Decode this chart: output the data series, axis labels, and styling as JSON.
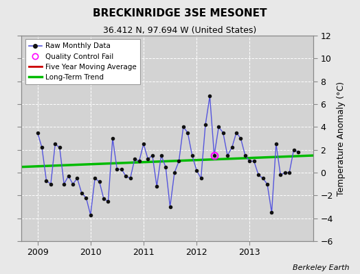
{
  "title": "BRECKINRIDGE 3SE MESONET",
  "subtitle": "36.412 N, 97.694 W (United States)",
  "ylabel": "Temperature Anomaly (°C)",
  "credit": "Berkeley Earth",
  "ylim": [
    -6,
    12
  ],
  "yticks": [
    -6,
    -4,
    -2,
    0,
    2,
    4,
    6,
    8,
    10,
    12
  ],
  "xlim": [
    2008.7,
    2014.2
  ],
  "bg_color": "#e8e8e8",
  "plot_bg_color": "#d3d3d3",
  "raw_color": "#5555dd",
  "raw_marker_color": "#111111",
  "trend_color": "#00bb00",
  "mavg_color": "#cc0000",
  "qc_fail_color": "#ff00ff",
  "raw_data_x": [
    2009.0,
    2009.083,
    2009.167,
    2009.25,
    2009.333,
    2009.417,
    2009.5,
    2009.583,
    2009.667,
    2009.75,
    2009.833,
    2009.917,
    2010.0,
    2010.083,
    2010.167,
    2010.25,
    2010.333,
    2010.417,
    2010.5,
    2010.583,
    2010.667,
    2010.75,
    2010.833,
    2010.917,
    2011.0,
    2011.083,
    2011.167,
    2011.25,
    2011.333,
    2011.417,
    2011.5,
    2011.583,
    2011.667,
    2011.75,
    2011.833,
    2011.917,
    2012.0,
    2012.083,
    2012.167,
    2012.25,
    2012.333,
    2012.417,
    2012.5,
    2012.583,
    2012.667,
    2012.75,
    2012.833,
    2012.917,
    2013.0,
    2013.083,
    2013.167,
    2013.25,
    2013.333,
    2013.417,
    2013.5,
    2013.583,
    2013.667,
    2013.75,
    2013.833,
    2013.917
  ],
  "raw_data_y": [
    3.5,
    2.2,
    -0.7,
    -1.0,
    2.5,
    2.2,
    -1.0,
    -0.3,
    -1.0,
    -0.5,
    -1.8,
    -2.2,
    -3.7,
    -0.5,
    -0.8,
    -2.3,
    -2.5,
    3.0,
    0.3,
    0.3,
    -0.3,
    -0.5,
    1.2,
    1.0,
    2.5,
    1.2,
    1.5,
    -1.2,
    1.5,
    0.5,
    -3.0,
    0.0,
    1.0,
    4.0,
    3.5,
    1.5,
    0.2,
    -0.5,
    4.2,
    6.7,
    1.5,
    4.0,
    3.5,
    1.5,
    2.2,
    3.5,
    3.0,
    1.5,
    1.0,
    1.0,
    -0.2,
    -0.5,
    -1.0,
    -3.5,
    2.5,
    -0.2,
    0.0,
    0.0,
    2.0,
    1.8
  ],
  "qc_fail_x": [
    2012.333
  ],
  "qc_fail_y": [
    1.5
  ],
  "trend_x": [
    2008.7,
    2014.2
  ],
  "trend_y": [
    0.5,
    1.5
  ],
  "mavg_x": [],
  "mavg_y": []
}
